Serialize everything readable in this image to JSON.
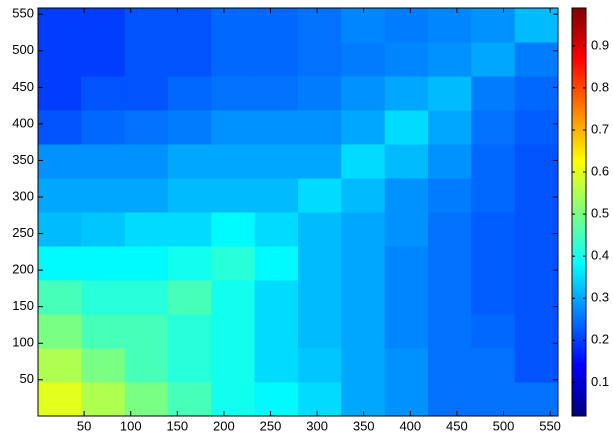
{
  "chart_data": {
    "type": "heatmap",
    "xbins": [
      0.5,
      47,
      93.5,
      140,
      186.5,
      233,
      279.5,
      326,
      372.5,
      419,
      465.5,
      512,
      558.5
    ],
    "ybins": [
      0.5,
      47,
      93.5,
      140,
      186.5,
      233,
      279.5,
      326,
      372.5,
      419,
      465.5,
      512,
      558.5
    ],
    "values": [
      [
        0.6,
        0.55,
        0.5,
        0.45,
        0.4,
        0.38,
        0.35,
        0.3,
        0.28,
        0.25,
        0.25,
        0.25
      ],
      [
        0.55,
        0.5,
        0.45,
        0.42,
        0.4,
        0.35,
        0.33,
        0.3,
        0.28,
        0.25,
        0.25,
        0.22
      ],
      [
        0.5,
        0.45,
        0.45,
        0.42,
        0.4,
        0.35,
        0.32,
        0.3,
        0.27,
        0.25,
        0.24,
        0.22
      ],
      [
        0.45,
        0.42,
        0.42,
        0.45,
        0.4,
        0.35,
        0.32,
        0.3,
        0.27,
        0.25,
        0.23,
        0.22
      ],
      [
        0.38,
        0.38,
        0.38,
        0.4,
        0.42,
        0.38,
        0.32,
        0.3,
        0.27,
        0.25,
        0.23,
        0.22
      ],
      [
        0.32,
        0.33,
        0.35,
        0.35,
        0.38,
        0.35,
        0.32,
        0.3,
        0.28,
        0.25,
        0.23,
        0.22
      ],
      [
        0.3,
        0.3,
        0.3,
        0.32,
        0.32,
        0.32,
        0.35,
        0.32,
        0.28,
        0.26,
        0.24,
        0.22
      ],
      [
        0.28,
        0.28,
        0.28,
        0.3,
        0.3,
        0.3,
        0.3,
        0.35,
        0.32,
        0.28,
        0.24,
        0.22
      ],
      [
        0.22,
        0.24,
        0.25,
        0.26,
        0.28,
        0.28,
        0.28,
        0.3,
        0.35,
        0.3,
        0.25,
        0.23
      ],
      [
        0.2,
        0.22,
        0.22,
        0.24,
        0.25,
        0.25,
        0.26,
        0.28,
        0.3,
        0.32,
        0.26,
        0.24
      ],
      [
        0.2,
        0.2,
        0.22,
        0.22,
        0.24,
        0.24,
        0.25,
        0.26,
        0.27,
        0.28,
        0.3,
        0.26
      ],
      [
        0.2,
        0.2,
        0.22,
        0.22,
        0.24,
        0.24,
        0.25,
        0.27,
        0.26,
        0.27,
        0.28,
        0.32
      ]
    ],
    "xlim": [
      0.5,
      558.5
    ],
    "ylim": [
      0.5,
      558.5
    ],
    "xticks": [
      50,
      100,
      150,
      200,
      250,
      300,
      350,
      400,
      450,
      500,
      550
    ],
    "yticks": [
      50,
      100,
      150,
      200,
      250,
      300,
      350,
      400,
      450,
      500,
      550
    ],
    "clim": [
      0.02,
      0.99
    ],
    "cticks": [
      0.1,
      0.2,
      0.3,
      0.4,
      0.5,
      0.6,
      0.7,
      0.8,
      0.9
    ],
    "colormap": "jet"
  }
}
